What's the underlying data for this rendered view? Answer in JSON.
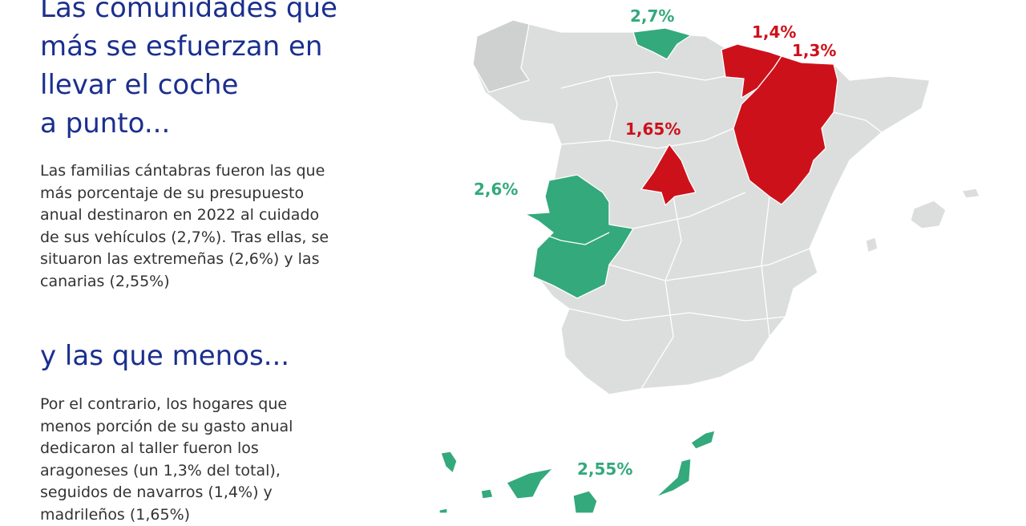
{
  "heading_top": [
    "Las comunidades que",
    "más se esfuerzan en",
    "llevar el coche",
    "a punto..."
  ],
  "paragraph_top": [
    "Las familias cántabras fueron las que",
    "más porcentaje de su presupuesto",
    "anual destinaron en 2022 al cuidado",
    "de sus vehículos (2,7%). Tras ellas, se",
    "situaron las extremeñas (2,6%) y las",
    "canarias (2,55%)"
  ],
  "heading_bottom": "y las que menos...",
  "paragraph_bottom": [
    "Por el contrario, los hogares que",
    "menos porción de su gasto anual",
    "dedicaron al taller fueron los",
    "aragoneses (un 1,3% del total),",
    "seguidos de navarros (1,4%) y",
    "madrileños (1,65%)"
  ],
  "colors": {
    "high": "#34a97c",
    "low": "#cd111b",
    "neutral": "#dcdddd",
    "galicia": "#cfd0d0",
    "heading": "#1b2f8e"
  },
  "map": {
    "regions_high": [
      {
        "name": "Cantabria",
        "value": "2,7%"
      },
      {
        "name": "Extremadura",
        "value": "2,6%"
      },
      {
        "name": "Canarias",
        "value": "2,55%"
      }
    ],
    "regions_low": [
      {
        "name": "Navarra",
        "value": "1,4%"
      },
      {
        "name": "Aragón",
        "value": "1,3%"
      },
      {
        "name": "Madrid",
        "value": "1,65%"
      }
    ]
  }
}
